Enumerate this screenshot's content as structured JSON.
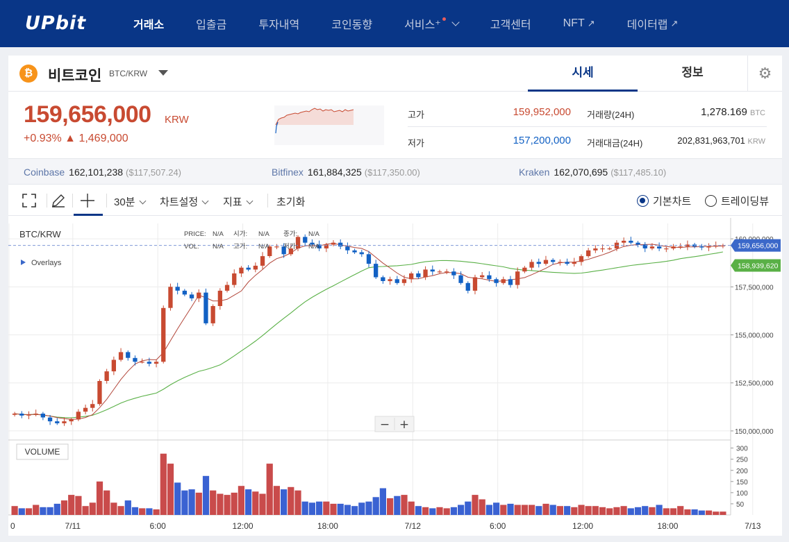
{
  "nav": {
    "logo": "UPbit",
    "items": [
      {
        "label": "거래소",
        "active": true
      },
      {
        "label": "입출금"
      },
      {
        "label": "투자내역"
      },
      {
        "label": "코인동향"
      },
      {
        "label": "서비스⁺",
        "dot": true,
        "chevron": true
      },
      {
        "label": "고객센터"
      },
      {
        "label": "NFT",
        "external": true
      },
      {
        "label": "데이터랩",
        "external": true
      }
    ]
  },
  "coin": {
    "name": "비트코인",
    "pair": "BTC/KRW",
    "icon": "bitcoin-icon",
    "icon_glyph": "₿"
  },
  "tabs": {
    "market": "시세",
    "info": "정보"
  },
  "price": {
    "current": "159,656,000",
    "unit": "KRW",
    "change": "+0.93% ▲ 1,469,000"
  },
  "stats": {
    "high_label": "고가",
    "high": "159,952,000",
    "low_label": "저가",
    "low": "157,200,000",
    "volume_label": "거래량(24H)",
    "volume": "1,278.169",
    "volume_unit": "BTC",
    "value_label": "거래대금(24H)",
    "value": "202,831,963,701",
    "value_unit": "KRW"
  },
  "exchanges": [
    {
      "name": "Coinbase",
      "value": "162,101,238",
      "usd": "($117,507.24)"
    },
    {
      "name": "Bitfinex",
      "value": "161,884,325",
      "usd": "($117,350.00)"
    },
    {
      "name": "Kraken",
      "value": "162,070,695",
      "usd": "($117,485.10)"
    }
  ],
  "toolbar": {
    "interval": "30분",
    "settings": "차트설정",
    "indicators": "지표",
    "reset": "초기화",
    "basic_chart": "기본차트",
    "tradingview": "트레이딩뷰"
  },
  "colors": {
    "up": "#c84a31",
    "down": "#1261c4",
    "brand": "#093687"
  },
  "chart_labels": {
    "pair": "BTC/KRW",
    "overlays": "Overlays",
    "ohlc_row1": [
      "PRICE:",
      "N/A",
      "시가:",
      "N/A",
      "종가:",
      "N/A"
    ],
    "ohlc_row2": [
      "VOL:",
      "N/A",
      "고가:",
      "N/A",
      "저가:",
      "N/A"
    ],
    "volume_label": "VOLUME",
    "price_tag": "159,656,000",
    "ma_tag": "158,939,620"
  },
  "chart_data": {
    "type": "candlestick",
    "price_axis": {
      "ticks": [
        "160,000,000",
        "157,500,000",
        "155,000,000",
        "152,500,000",
        "150,000,000"
      ],
      "values": [
        160000000,
        157500000,
        155000000,
        152500000,
        150000000
      ]
    },
    "volume_axis": {
      "ticks": [
        "300",
        "250",
        "200",
        "150",
        "100",
        "50"
      ],
      "values": [
        300,
        250,
        200,
        150,
        100,
        50
      ]
    },
    "x_ticks": [
      "0",
      "7/11",
      "6:00",
      "12:00",
      "18:00",
      "7/12",
      "6:00",
      "12:00",
      "18:00",
      "7/13"
    ],
    "current_price": 159656000,
    "ma_last": 158939620,
    "closes": [
      150900000,
      150800000,
      150850000,
      150900000,
      150700000,
      150500000,
      150400000,
      150500000,
      150600000,
      151000000,
      151200000,
      151400000,
      152600000,
      153100000,
      153700000,
      154100000,
      153800000,
      153600000,
      153600000,
      153500000,
      153600000,
      156400000,
      157500000,
      157300000,
      157100000,
      156900000,
      157200000,
      155600000,
      156500000,
      157300000,
      157600000,
      158200000,
      158500000,
      158400000,
      158600000,
      159100000,
      159600000,
      159600000,
      159200000,
      159500000,
      160100000,
      159800000,
      159700000,
      159500000,
      159700000,
      159800000,
      159600000,
      159400000,
      159300000,
      159200000,
      158700000,
      158000000,
      157800000,
      157900000,
      157700000,
      157900000,
      158200000,
      158000000,
      158400000,
      158300000,
      158300000,
      158300000,
      158100000,
      157700000,
      157300000,
      158000000,
      158100000,
      157900000,
      157700000,
      157900000,
      157600000,
      158300000,
      158500000,
      158800000,
      158700000,
      158900000,
      158800000,
      158800000,
      158700000,
      158800000,
      159100000,
      159400000,
      159500000,
      159500000,
      159500000,
      159800000,
      159900000,
      159800000,
      159700000,
      159500000,
      159600000,
      159500000,
      159500000,
      159600000,
      159600000,
      159700000,
      159600000,
      159550000,
      159600000,
      159650000,
      159656000
    ],
    "volumes": [
      40,
      30,
      30,
      45,
      35,
      35,
      50,
      65,
      90,
      85,
      40,
      55,
      150,
      110,
      55,
      40,
      65,
      35,
      30,
      30,
      25,
      275,
      230,
      145,
      110,
      115,
      100,
      175,
      110,
      95,
      90,
      100,
      130,
      115,
      105,
      95,
      230,
      130,
      115,
      125,
      110,
      60,
      55,
      60,
      60,
      50,
      50,
      45,
      40,
      55,
      60,
      80,
      120,
      75,
      85,
      90,
      60,
      40,
      35,
      30,
      35,
      30,
      35,
      45,
      60,
      90,
      70,
      45,
      55,
      45,
      50,
      45,
      45,
      45,
      40,
      50,
      45,
      40,
      40,
      35,
      45,
      40,
      40,
      35,
      30,
      35,
      40,
      30,
      35,
      40,
      35,
      45,
      30,
      30,
      40,
      25,
      25,
      20,
      20,
      15,
      15
    ]
  }
}
